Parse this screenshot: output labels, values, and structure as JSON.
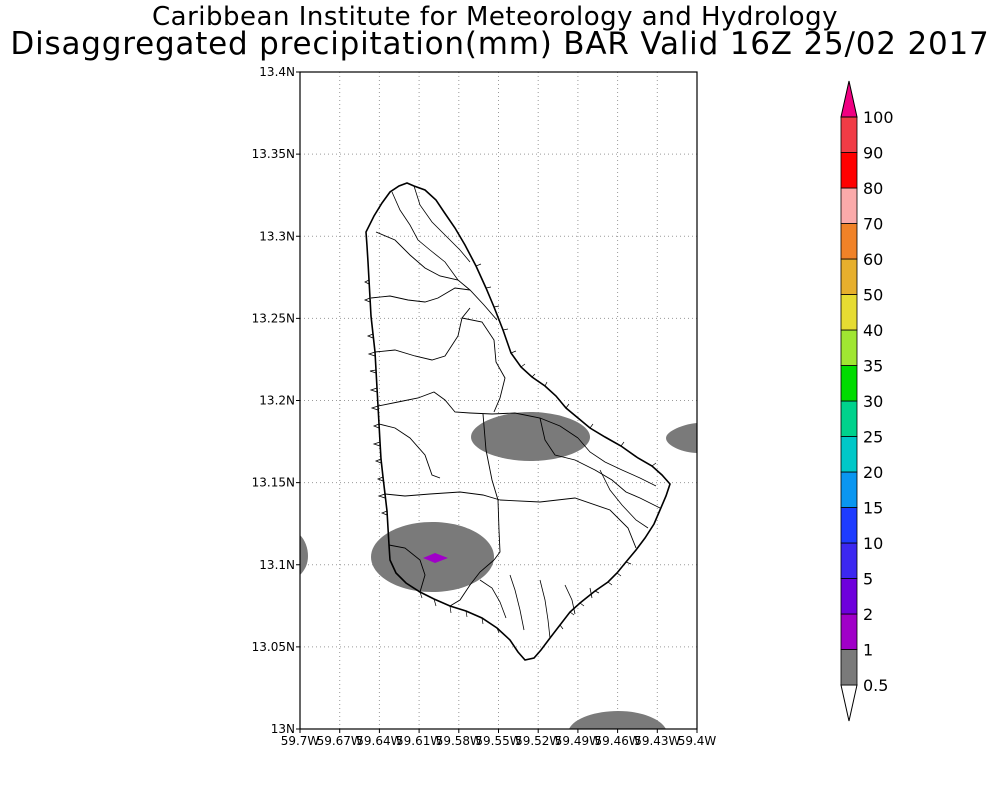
{
  "header": {
    "line1": "Caribbean Institute for Meteorology and Hydrology",
    "line2": "Disaggregated precipitation(mm) BAR Valid 16Z 25/02 2017"
  },
  "map": {
    "lat_ticks": [
      "13.4N",
      "13.35N",
      "13.3N",
      "13.25N",
      "13.2N",
      "13.15N",
      "13.1N",
      "13.05N",
      "13N"
    ],
    "lon_ticks": [
      "59.7W",
      "59.67W",
      "59.64W",
      "59.61W",
      "59.58W",
      "59.55W",
      "59.52W",
      "59.49W",
      "59.46W",
      "59.43W",
      "59.4W"
    ],
    "extent": {
      "lon_min": -59.7,
      "lon_max": -59.4,
      "lat_min": 13.0,
      "lat_max": 13.4
    }
  },
  "colorbar": {
    "levels": [
      "0.5",
      "1",
      "2",
      "5",
      "10",
      "15",
      "20",
      "25",
      "30",
      "35",
      "40",
      "50",
      "60",
      "70",
      "80",
      "90",
      "100"
    ],
    "colors": [
      "#ffffff",
      "#7a7a7a",
      "#a000c8",
      "#6e00dc",
      "#3c28f0",
      "#1e3cff",
      "#0a96f0",
      "#00c8c8",
      "#00d28c",
      "#00dc00",
      "#a0e632",
      "#e6dc32",
      "#e6af2d",
      "#f08228",
      "#faaaaa",
      "#ff0000",
      "#f03c46",
      "#f00082"
    ]
  }
}
